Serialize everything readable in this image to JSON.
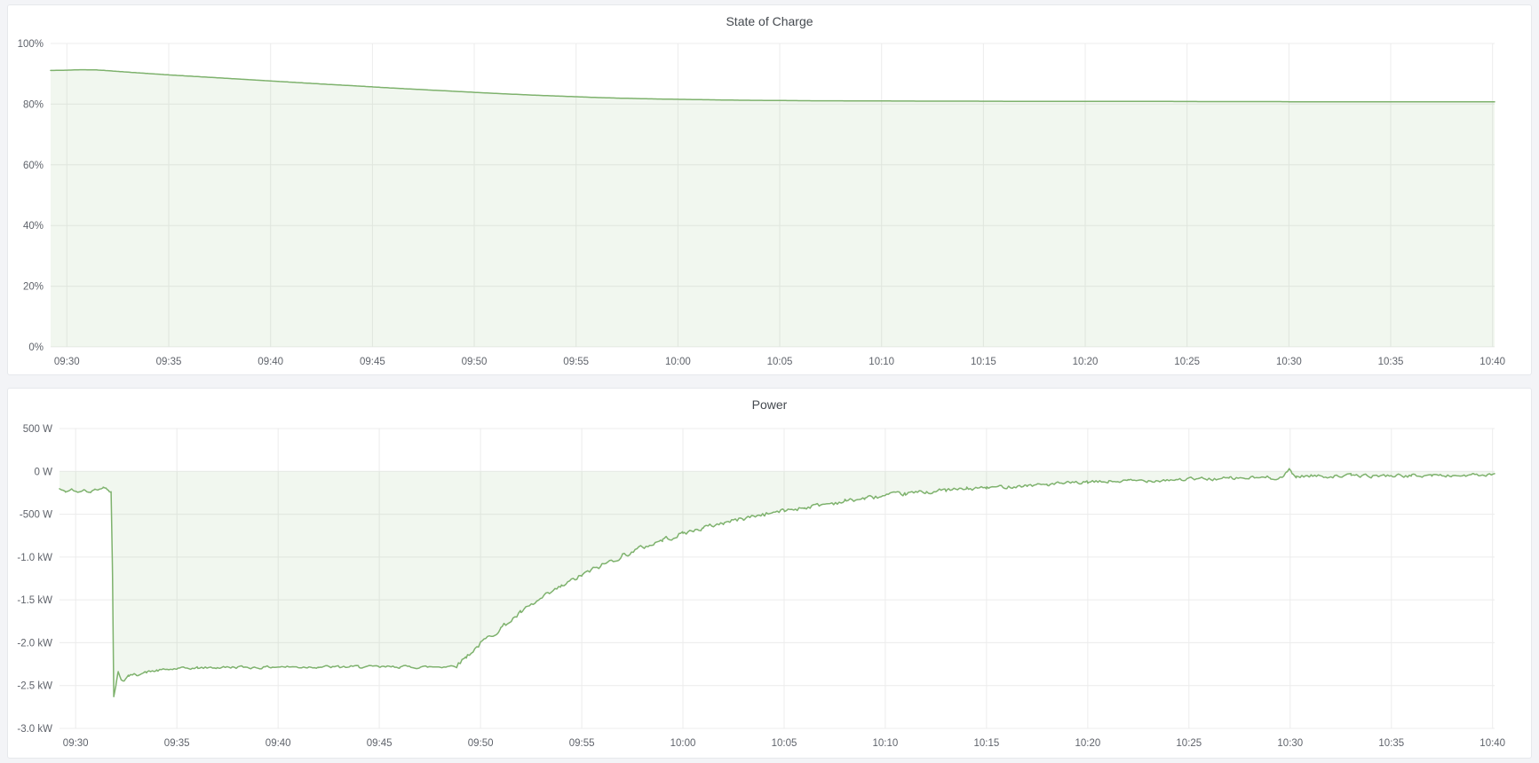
{
  "theme": {
    "page_background": "#f3f4f7",
    "panel_background": "#ffffff",
    "panel_border": "#e6e8ec",
    "title_color": "#44494f",
    "tick_color": "#5f636b",
    "grid_color": "#ececec",
    "series_color": "#7eb26d",
    "fill_opacity": 0.11
  },
  "chart_data": [
    {
      "id": "state-of-charge",
      "type": "area",
      "title": "State of Charge",
      "xlabel": "",
      "ylabel": "",
      "x_unit": "minutes after 09:30",
      "xlim": [
        -0.8,
        70.1
      ],
      "ylim": [
        0,
        100
      ],
      "fill_to": 0,
      "grid": true,
      "legend": "none",
      "x_ticks": [
        {
          "label": "09:30",
          "t": 0
        },
        {
          "label": "09:35",
          "t": 5
        },
        {
          "label": "09:40",
          "t": 10
        },
        {
          "label": "09:45",
          "t": 15
        },
        {
          "label": "09:50",
          "t": 20
        },
        {
          "label": "09:55",
          "t": 25
        },
        {
          "label": "10:00",
          "t": 30
        },
        {
          "label": "10:05",
          "t": 35
        },
        {
          "label": "10:10",
          "t": 40
        },
        {
          "label": "10:15",
          "t": 45
        },
        {
          "label": "10:20",
          "t": 50
        },
        {
          "label": "10:25",
          "t": 55
        },
        {
          "label": "10:30",
          "t": 60
        },
        {
          "label": "10:35",
          "t": 65
        },
        {
          "label": "10:40",
          "t": 70
        }
      ],
      "y_ticks": [
        {
          "label": "100%",
          "v": 100
        },
        {
          "label": "80%",
          "v": 80
        },
        {
          "label": "60%",
          "v": 60
        },
        {
          "label": "40%",
          "v": 40
        },
        {
          "label": "20%",
          "v": 20
        },
        {
          "label": "0%",
          "v": 0
        }
      ],
      "points": [
        [
          -0.8,
          91.1
        ],
        [
          0,
          91.2
        ],
        [
          0.7,
          91.35
        ],
        [
          1.4,
          91.3
        ],
        [
          2,
          91.05
        ],
        [
          3,
          90.55
        ],
        [
          4,
          90.1
        ],
        [
          5,
          89.65
        ],
        [
          6,
          89.25
        ],
        [
          7,
          88.85
        ],
        [
          8,
          88.45
        ],
        [
          9,
          88.05
        ],
        [
          10,
          87.65
        ],
        [
          11,
          87.25
        ],
        [
          12,
          86.85
        ],
        [
          13,
          86.45
        ],
        [
          14,
          86.1
        ],
        [
          15,
          85.7
        ],
        [
          16,
          85.3
        ],
        [
          17,
          84.95
        ],
        [
          18,
          84.6
        ],
        [
          19,
          84.25
        ],
        [
          20,
          83.9
        ],
        [
          21,
          83.55
        ],
        [
          22,
          83.25
        ],
        [
          23,
          82.95
        ],
        [
          24,
          82.7
        ],
        [
          25,
          82.45
        ],
        [
          26,
          82.2
        ],
        [
          27,
          82.0
        ],
        [
          28,
          81.85
        ],
        [
          29,
          81.7
        ],
        [
          30,
          81.6
        ],
        [
          31,
          81.5
        ],
        [
          32,
          81.4
        ],
        [
          33,
          81.3
        ],
        [
          34,
          81.25
        ],
        [
          35,
          81.2
        ],
        [
          36,
          81.15
        ],
        [
          37,
          81.1
        ],
        [
          38,
          81.1
        ],
        [
          40,
          81.05
        ],
        [
          42,
          81.0
        ],
        [
          44,
          81.0
        ],
        [
          46,
          80.95
        ],
        [
          48,
          80.95
        ],
        [
          50,
          80.9
        ],
        [
          52,
          80.9
        ],
        [
          54,
          80.9
        ],
        [
          56,
          80.85
        ],
        [
          58,
          80.85
        ],
        [
          59.5,
          80.85
        ],
        [
          60,
          80.8
        ],
        [
          62,
          80.8
        ],
        [
          64,
          80.8
        ],
        [
          66,
          80.8
        ],
        [
          68,
          80.8
        ],
        [
          70.1,
          80.8
        ]
      ],
      "noise": {
        "seed": 7,
        "segments": []
      }
    },
    {
      "id": "power",
      "type": "area",
      "title": "Power",
      "xlabel": "",
      "ylabel": "",
      "x_unit": "minutes after 09:30",
      "y_unit": "W",
      "xlim": [
        -0.8,
        70.1
      ],
      "ylim": [
        -3000,
        500
      ],
      "fill_to": 0,
      "grid": true,
      "legend": "none",
      "x_ticks": [
        {
          "label": "09:30",
          "t": 0
        },
        {
          "label": "09:35",
          "t": 5
        },
        {
          "label": "09:40",
          "t": 10
        },
        {
          "label": "09:45",
          "t": 15
        },
        {
          "label": "09:50",
          "t": 20
        },
        {
          "label": "09:55",
          "t": 25
        },
        {
          "label": "10:00",
          "t": 30
        },
        {
          "label": "10:05",
          "t": 35
        },
        {
          "label": "10:10",
          "t": 40
        },
        {
          "label": "10:15",
          "t": 45
        },
        {
          "label": "10:20",
          "t": 50
        },
        {
          "label": "10:25",
          "t": 55
        },
        {
          "label": "10:30",
          "t": 60
        },
        {
          "label": "10:35",
          "t": 65
        },
        {
          "label": "10:40",
          "t": 70
        }
      ],
      "y_ticks": [
        {
          "label": "500 W",
          "v": 500
        },
        {
          "label": "0 W",
          "v": 0
        },
        {
          "label": "-500 W",
          "v": -500
        },
        {
          "label": "-1.0 kW",
          "v": -1000
        },
        {
          "label": "-1.5 kW",
          "v": -1500
        },
        {
          "label": "-2.0 kW",
          "v": -2000
        },
        {
          "label": "-2.5 kW",
          "v": -2500
        },
        {
          "label": "-3.0 kW",
          "v": -3000
        }
      ],
      "points": [
        [
          -0.8,
          -205
        ],
        [
          -0.5,
          -240
        ],
        [
          -0.2,
          -210
        ],
        [
          0.1,
          -250
        ],
        [
          0.4,
          -215
        ],
        [
          0.7,
          -248
        ],
        [
          0.95,
          -200
        ],
        [
          1.15,
          -212
        ],
        [
          1.35,
          -185
        ],
        [
          1.5,
          -200
        ],
        [
          1.65,
          -228
        ],
        [
          1.75,
          -235
        ],
        [
          1.82,
          -1200
        ],
        [
          1.88,
          -2630
        ],
        [
          2.0,
          -2480
        ],
        [
          2.1,
          -2340
        ],
        [
          2.25,
          -2430
        ],
        [
          2.4,
          -2445
        ],
        [
          2.6,
          -2385
        ],
        [
          3.0,
          -2370
        ],
        [
          3.5,
          -2345
        ],
        [
          4.0,
          -2325
        ],
        [
          5.0,
          -2305
        ],
        [
          6,
          -2295
        ],
        [
          7,
          -2290
        ],
        [
          8,
          -2285
        ],
        [
          9,
          -2290
        ],
        [
          10,
          -2280
        ],
        [
          11,
          -2285
        ],
        [
          12,
          -2280
        ],
        [
          13,
          -2285
        ],
        [
          14,
          -2280
        ],
        [
          15,
          -2285
        ],
        [
          16,
          -2280
        ],
        [
          17,
          -2285
        ],
        [
          18,
          -2280
        ],
        [
          18.8,
          -2270
        ],
        [
          19.3,
          -2160
        ],
        [
          20,
          -2010
        ],
        [
          21,
          -1830
        ],
        [
          22,
          -1650
        ],
        [
          23,
          -1490
        ],
        [
          24,
          -1345
        ],
        [
          25,
          -1215
        ],
        [
          26,
          -1095
        ],
        [
          27,
          -985
        ],
        [
          28,
          -890
        ],
        [
          29,
          -800
        ],
        [
          30,
          -725
        ],
        [
          31,
          -660
        ],
        [
          32,
          -600
        ],
        [
          33,
          -548
        ],
        [
          34,
          -500
        ],
        [
          35,
          -458
        ],
        [
          36,
          -420
        ],
        [
          37,
          -383
        ],
        [
          38,
          -348
        ],
        [
          39,
          -315
        ],
        [
          40,
          -287
        ],
        [
          41,
          -262
        ],
        [
          42,
          -240
        ],
        [
          43,
          -222
        ],
        [
          44,
          -206
        ],
        [
          45,
          -192
        ],
        [
          46,
          -178
        ],
        [
          47,
          -164
        ],
        [
          48,
          -152
        ],
        [
          49,
          -140
        ],
        [
          50,
          -130
        ],
        [
          51,
          -120
        ],
        [
          52,
          -112
        ],
        [
          53,
          -105
        ],
        [
          54,
          -98
        ],
        [
          55,
          -92
        ],
        [
          56,
          -88
        ],
        [
          57,
          -84
        ],
        [
          58,
          -78
        ],
        [
          59,
          -72
        ],
        [
          59.6,
          -70
        ],
        [
          59.85,
          -15
        ],
        [
          59.95,
          35
        ],
        [
          60.1,
          -25
        ],
        [
          60.3,
          -60
        ],
        [
          61,
          -52
        ],
        [
          62,
          -58
        ],
        [
          63,
          -48
        ],
        [
          64,
          -55
        ],
        [
          65,
          -48
        ],
        [
          66,
          -54
        ],
        [
          67,
          -45
        ],
        [
          68,
          -52
        ],
        [
          69,
          -44
        ],
        [
          70.1,
          -48
        ]
      ],
      "noise": {
        "seed": 42,
        "segments": [
          {
            "from": -0.8,
            "to": 1.75,
            "amp": 10
          },
          {
            "from": 1.75,
            "to": 2.6,
            "amp": 8
          },
          {
            "from": 2.6,
            "to": 18.8,
            "amp": 18
          },
          {
            "from": 18.8,
            "to": 30,
            "amp": 34
          },
          {
            "from": 30,
            "to": 45,
            "amp": 30
          },
          {
            "from": 45,
            "to": 59.5,
            "amp": 24
          },
          {
            "from": 59.5,
            "to": 70.1,
            "amp": 22
          }
        ]
      }
    }
  ]
}
